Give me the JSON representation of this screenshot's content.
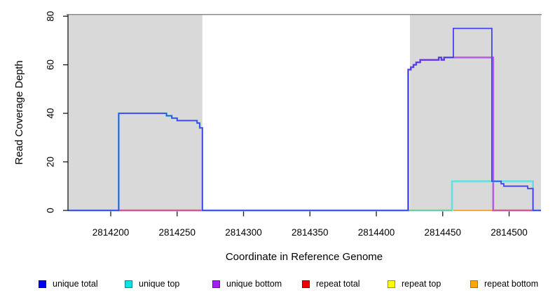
{
  "chart_data": {
    "type": "line",
    "step": true,
    "title": "",
    "xlabel": "Coordinate in Reference Genome",
    "ylabel": "Read Coverage Depth",
    "xlim": [
      2814167.8,
      2814524
    ],
    "ylim": [
      0,
      80
    ],
    "x_ticks": [
      2814200,
      2814250,
      2814300,
      2814350,
      2814400,
      2814450,
      2814500
    ],
    "y_ticks": [
      0,
      20,
      40,
      60,
      80
    ],
    "grid": false,
    "shaded_regions": [
      {
        "start": 2814167.8,
        "end": 2814269,
        "color": "#d9d9d9"
      },
      {
        "start": 2814425.3,
        "end": 2814524,
        "color": "#d9d9d9"
      }
    ],
    "series": [
      {
        "name": "unique bottom",
        "color": "#b55fe0",
        "width": 2.6,
        "segments": [
          [
            [
              2814168,
              0
            ],
            [
              2814424,
              58
            ],
            [
              2814426,
              59
            ],
            [
              2814428,
              60
            ],
            [
              2814430,
              61
            ],
            [
              2814433,
              62
            ],
            [
              2814447,
              63
            ],
            [
              2814449,
              62
            ],
            [
              2814451,
              63
            ],
            [
              2814488,
              0
            ],
            [
              2814524,
              0
            ]
          ]
        ]
      },
      {
        "name": "unique top",
        "color": "#66dde4",
        "width": 2.6,
        "segments": [
          [
            [
              2814168,
              0
            ],
            [
              2814206,
              40
            ],
            [
              2814242,
              39
            ],
            [
              2814246,
              38
            ],
            [
              2814250,
              37
            ],
            [
              2814265,
              36
            ],
            [
              2814267,
              34
            ],
            [
              2814269,
              0
            ],
            [
              2814457,
              12
            ],
            [
              2814518,
              0
            ],
            [
              2814524,
              0
            ]
          ]
        ]
      },
      {
        "name": "baseline green",
        "color": "#7cc87c",
        "width": 1.6,
        "segments": [
          [
            [
              2814424,
              0
            ],
            [
              2814457,
              0
            ]
          ]
        ]
      },
      {
        "name": "repeat bottom",
        "color": "#ff9d1f",
        "width": 1.8,
        "segments": [
          [
            [
              2814458,
              0
            ],
            [
              2814487,
              0
            ]
          ]
        ]
      },
      {
        "name": "repeat total",
        "color": "#e25864",
        "width": 1.6,
        "segments": [
          [
            [
              2814206,
              0
            ],
            [
              2814268,
              0
            ]
          ],
          [
            [
              2814487,
              0
            ],
            [
              2814518,
              0
            ]
          ]
        ]
      },
      {
        "name": "unique total",
        "color": "#4343e6",
        "width": 1.8,
        "segments": [
          [
            [
              2814168,
              0
            ],
            [
              2814206,
              40
            ],
            [
              2814242,
              39
            ],
            [
              2814246,
              38
            ],
            [
              2814250,
              37
            ],
            [
              2814265,
              36
            ],
            [
              2814267,
              34
            ],
            [
              2814269,
              0
            ],
            [
              2814424,
              58
            ],
            [
              2814426,
              59
            ],
            [
              2814428,
              60
            ],
            [
              2814430,
              61
            ],
            [
              2814433,
              62
            ],
            [
              2814447,
              63
            ],
            [
              2814449,
              62
            ],
            [
              2814451,
              63
            ],
            [
              2814458,
              75
            ],
            [
              2814487,
              12
            ],
            [
              2814494,
              11
            ],
            [
              2814496,
              10
            ],
            [
              2814514,
              9
            ],
            [
              2814518,
              0
            ],
            [
              2814524,
              0
            ]
          ]
        ]
      }
    ],
    "legend": [
      {
        "label": "unique total",
        "fill": "#0000ee",
        "border": "#00008b"
      },
      {
        "label": "unique top",
        "fill": "#00e5e5",
        "border": "#008b8b"
      },
      {
        "label": "unique bottom",
        "fill": "#a020f0",
        "border": "#6a0dad"
      },
      {
        "label": "repeat total",
        "fill": "#ee0000",
        "border": "#8b0000"
      },
      {
        "label": "repeat top",
        "fill": "#ffff00",
        "border": "#9a9a00"
      },
      {
        "label": "repeat bottom",
        "fill": "#ffa500",
        "border": "#b86b00"
      }
    ],
    "frame": {
      "top_border_color": "#8c8c8c",
      "axis_color": "#1a1a1a"
    }
  }
}
